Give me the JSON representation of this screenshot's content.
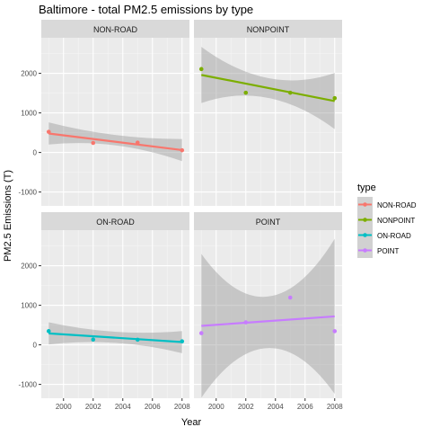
{
  "chart_data": {
    "type": "scatter",
    "title": "Baltimore - total PM2.5 emissions by type",
    "xlabel": "Year",
    "ylabel": "PM2.5 Emissions (T)",
    "xlim": [
      1998.5,
      2008.5
    ],
    "ylim": [
      -1350,
      2900
    ],
    "x_ticks": [
      2000,
      2002,
      2004,
      2006,
      2008
    ],
    "y_ticks": [
      -1000,
      0,
      1000,
      2000
    ],
    "grid": true,
    "legend": {
      "title": "type",
      "placement": "right",
      "entries": [
        "NON-ROAD",
        "NONPOINT",
        "ON-ROAD",
        "POINT"
      ]
    },
    "colors": {
      "NON-ROAD": "#F8766D",
      "NONPOINT": "#7CAE00",
      "ON-ROAD": "#00BFC4",
      "POINT": "#C77CFF"
    },
    "facets": [
      {
        "label": "NON-ROAD",
        "series": "NON-ROAD",
        "points": [
          [
            1999,
            522
          ],
          [
            2002,
            241
          ],
          [
            2005,
            248
          ],
          [
            2008,
            55
          ]
        ],
        "fit": [
          [
            1999,
            480
          ],
          [
            2008,
            60
          ]
        ],
        "band_upper": [
          [
            1999,
            760
          ],
          [
            2003.5,
            440
          ],
          [
            2008,
            340
          ]
        ],
        "band_lower": [
          [
            1999,
            200
          ],
          [
            2003.5,
            180
          ],
          [
            2008,
            -220
          ]
        ]
      },
      {
        "label": "NONPOINT",
        "series": "NONPOINT",
        "points": [
          [
            1999,
            2108
          ],
          [
            2002,
            1510
          ],
          [
            2005,
            1510
          ],
          [
            2008,
            1373
          ]
        ],
        "fit": [
          [
            1999,
            1960
          ],
          [
            2008,
            1300
          ]
        ],
        "band_upper": [
          [
            1999,
            2670
          ],
          [
            2003.5,
            1880
          ],
          [
            2008,
            2010
          ]
        ],
        "band_lower": [
          [
            1999,
            1250
          ],
          [
            2003.5,
            1380
          ],
          [
            2008,
            590
          ]
        ]
      },
      {
        "label": "ON-ROAD",
        "series": "ON-ROAD",
        "points": [
          [
            1999,
            347
          ],
          [
            2002,
            134
          ],
          [
            2005,
            130
          ],
          [
            2008,
            88
          ]
        ],
        "fit": [
          [
            1999,
            290
          ],
          [
            2008,
            70
          ]
        ],
        "band_upper": [
          [
            1999,
            570
          ],
          [
            2003.5,
            330
          ],
          [
            2008,
            350
          ]
        ],
        "band_lower": [
          [
            1999,
            10
          ],
          [
            2003.5,
            50
          ],
          [
            2008,
            -210
          ]
        ]
      },
      {
        "label": "POINT",
        "series": "POINT",
        "points": [
          [
            1999,
            296
          ],
          [
            2002,
            569
          ],
          [
            2005,
            1195
          ],
          [
            2008,
            345
          ]
        ],
        "fit": [
          [
            1999,
            480
          ],
          [
            2008,
            720
          ]
        ],
        "band_upper": [
          [
            1999,
            2300
          ],
          [
            2003.5,
            1220
          ],
          [
            2008,
            2680
          ]
        ],
        "band_lower": [
          [
            1999,
            -1340
          ],
          [
            2003.5,
            -80
          ],
          [
            2008,
            -1240
          ]
        ]
      }
    ]
  }
}
